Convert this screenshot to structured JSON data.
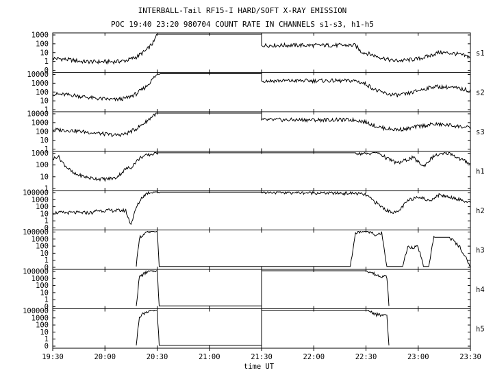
{
  "chart_data": {
    "type": "line",
    "title": "INTERBALL-Tail RF15-I HARD/SOFT X-RAY EMISSION",
    "subtitle": "POC 19:40 23:20 980704  COUNT RATE IN CHANNELS s1-s3, h1-h5",
    "xlabel": "time UT",
    "x_ticks": [
      "19:30",
      "20:00",
      "20:30",
      "21:00",
      "21:30",
      "22:00",
      "22:30",
      "23:00",
      "23:30"
    ],
    "x_range_hours": [
      19.5,
      23.5
    ],
    "y_scale": "log",
    "grid": false,
    "panels": [
      {
        "name": "s1",
        "y_ticks": [
          "1000",
          "100",
          "10",
          "1",
          "0"
        ],
        "series": [
          [
            19.5,
            8
          ],
          [
            19.65,
            6
          ],
          [
            19.8,
            4
          ],
          [
            19.95,
            4
          ],
          [
            20.1,
            4
          ],
          [
            20.2,
            5
          ],
          [
            20.3,
            10
          ],
          [
            20.4,
            40
          ],
          [
            20.47,
            200
          ],
          [
            20.5,
            1000
          ],
          [
            21.5,
            1000
          ],
          [
            21.5,
            100
          ],
          [
            22.3,
            100
          ],
          [
            22.4,
            100
          ],
          [
            22.45,
            30
          ],
          [
            22.6,
            12
          ],
          [
            22.75,
            5
          ],
          [
            22.85,
            5
          ],
          [
            23.0,
            7
          ],
          [
            23.1,
            12
          ],
          [
            23.2,
            25
          ],
          [
            23.35,
            20
          ],
          [
            23.5,
            10
          ]
        ]
      },
      {
        "name": "s2",
        "y_ticks": [
          "10000",
          "1000",
          "100",
          "10",
          "1"
        ],
        "series": [
          [
            19.5,
            20
          ],
          [
            19.7,
            15
          ],
          [
            19.9,
            8
          ],
          [
            20.1,
            6
          ],
          [
            20.2,
            8
          ],
          [
            20.3,
            20
          ],
          [
            20.4,
            100
          ],
          [
            20.47,
            600
          ],
          [
            20.52,
            1500
          ],
          [
            21.5,
            1500
          ],
          [
            21.5,
            300
          ],
          [
            22.4,
            300
          ],
          [
            22.5,
            150
          ],
          [
            22.6,
            40
          ],
          [
            22.7,
            20
          ],
          [
            22.8,
            15
          ],
          [
            22.9,
            20
          ],
          [
            23.0,
            40
          ],
          [
            23.15,
            90
          ],
          [
            23.3,
            80
          ],
          [
            23.5,
            40
          ]
        ]
      },
      {
        "name": "s3",
        "y_ticks": [
          "10000",
          "1000",
          "100",
          "10",
          "1"
        ],
        "series": [
          [
            19.5,
            50
          ],
          [
            19.7,
            40
          ],
          [
            19.9,
            25
          ],
          [
            20.1,
            15
          ],
          [
            20.2,
            20
          ],
          [
            20.3,
            60
          ],
          [
            20.4,
            300
          ],
          [
            20.47,
            1200
          ],
          [
            20.52,
            2000
          ],
          [
            21.5,
            2000
          ],
          [
            21.5,
            400
          ],
          [
            22.4,
            400
          ],
          [
            22.5,
            250
          ],
          [
            22.6,
            100
          ],
          [
            22.7,
            60
          ],
          [
            22.8,
            50
          ],
          [
            22.9,
            60
          ],
          [
            23.0,
            100
          ],
          [
            23.15,
            160
          ],
          [
            23.3,
            130
          ],
          [
            23.5,
            70
          ]
        ]
      },
      {
        "name": "h1",
        "y_ticks": [
          "1000",
          "100",
          "10",
          "1"
        ],
        "series": [
          [
            19.5,
            500
          ],
          [
            19.55,
            1000
          ],
          [
            19.6,
            200
          ],
          [
            19.7,
            20
          ],
          [
            19.85,
            8
          ],
          [
            20.0,
            6
          ],
          [
            20.1,
            8
          ],
          [
            20.15,
            20
          ],
          [
            20.2,
            60
          ],
          [
            20.25,
            80
          ],
          [
            20.3,
            300
          ],
          [
            20.35,
            800
          ],
          [
            20.45,
            1500
          ],
          [
            20.5,
            2000
          ],
          [
            21.5,
            2000
          ],
          [
            22.4,
            2000
          ],
          [
            22.5,
            1500
          ],
          [
            22.6,
            2500
          ],
          [
            22.7,
            600
          ],
          [
            22.8,
            200
          ],
          [
            22.95,
            700
          ],
          [
            23.05,
            100
          ],
          [
            23.15,
            1000
          ],
          [
            23.3,
            2000
          ],
          [
            23.4,
            500
          ],
          [
            23.5,
            200
          ]
        ]
      },
      {
        "name": "h2",
        "y_ticks": [
          "100000",
          "1000",
          "100",
          "10",
          "1",
          "0"
        ],
        "series": [
          [
            19.5,
            30
          ],
          [
            19.9,
            30
          ],
          [
            19.9,
            50
          ],
          [
            20.2,
            50
          ],
          [
            20.22,
            10
          ],
          [
            20.25,
            2
          ],
          [
            20.3,
            100
          ],
          [
            20.35,
            1000
          ],
          [
            20.4,
            3000
          ],
          [
            20.48,
            5000
          ],
          [
            20.52,
            4000
          ],
          [
            21.5,
            4000
          ],
          [
            22.4,
            3000
          ],
          [
            22.5,
            2000
          ],
          [
            22.6,
            300
          ],
          [
            22.7,
            50
          ],
          [
            22.8,
            30
          ],
          [
            22.9,
            500
          ],
          [
            23.0,
            1500
          ],
          [
            23.1,
            500
          ],
          [
            23.2,
            2000
          ],
          [
            23.35,
            1000
          ],
          [
            23.5,
            300
          ]
        ]
      },
      {
        "name": "h3",
        "y_ticks": [
          "100000",
          "1000",
          "100",
          "10",
          "1",
          "0"
        ],
        "series": [
          [
            20.3,
            1
          ],
          [
            20.33,
            1000
          ],
          [
            20.4,
            3000
          ],
          [
            20.5,
            5000
          ],
          [
            20.52,
            1
          ],
          [
            22.35,
            1
          ],
          [
            22.4,
            3000
          ],
          [
            22.5,
            5000
          ],
          [
            22.6,
            1500
          ],
          [
            22.65,
            3000
          ],
          [
            22.7,
            1
          ],
          [
            22.85,
            1
          ],
          [
            22.9,
            100
          ],
          [
            23.0,
            100
          ],
          [
            23.05,
            1
          ],
          [
            23.1,
            1
          ],
          [
            23.15,
            1000
          ],
          [
            23.3,
            1000
          ],
          [
            23.4,
            100
          ],
          [
            23.5,
            1
          ]
        ]
      },
      {
        "name": "h4",
        "y_ticks": [
          "100000",
          "1000",
          "100",
          "10",
          "1",
          "0"
        ],
        "series": [
          [
            20.3,
            1
          ],
          [
            20.33,
            1000
          ],
          [
            20.4,
            3000
          ],
          [
            20.5,
            5000
          ],
          [
            20.52,
            1
          ],
          [
            21.5,
            1
          ],
          [
            21.5,
            5000
          ],
          [
            22.4,
            5000
          ],
          [
            22.5,
            5000
          ],
          [
            22.6,
            1500
          ],
          [
            22.7,
            1000
          ],
          [
            22.72,
            1
          ]
        ]
      },
      {
        "name": "h5",
        "y_ticks": [
          "100000",
          "1000",
          "100",
          "10",
          "1",
          "0"
        ],
        "series": [
          [
            20.3,
            1
          ],
          [
            20.33,
            1000
          ],
          [
            20.4,
            3000
          ],
          [
            20.5,
            5000
          ],
          [
            20.52,
            1
          ],
          [
            21.5,
            1
          ],
          [
            21.5,
            5000
          ],
          [
            22.4,
            5000
          ],
          [
            22.5,
            5000
          ],
          [
            22.6,
            1500
          ],
          [
            22.7,
            1000
          ],
          [
            22.72,
            1
          ]
        ]
      }
    ]
  }
}
